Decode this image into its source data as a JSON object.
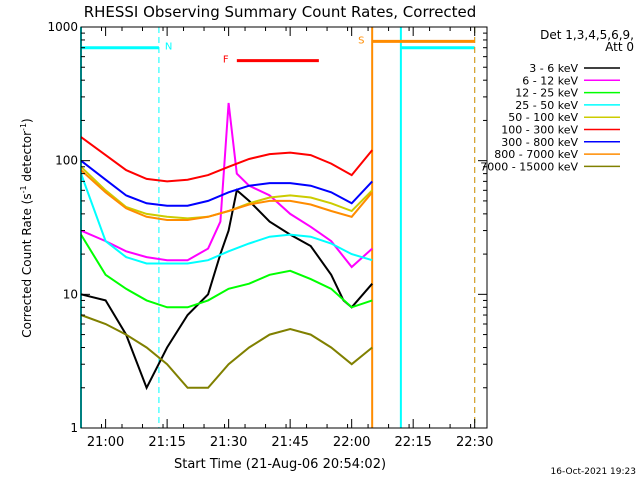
{
  "chart_data": {
    "type": "line",
    "title": "RHESSI Observing Summary Count Rates, Corrected",
    "xlabel": "Start Time (21-Aug-06 20:54:02)",
    "ylabel_main": "Corrected Count Rate (s",
    "ylabel_exp1": "-1",
    "ylabel_mid": " detector",
    "ylabel_exp2": "-1",
    "ylabel_end": ")",
    "yscale": "log",
    "xlim": [
      "20:54",
      "22:33"
    ],
    "ylim": [
      1,
      1000
    ],
    "x_ticks": [
      "21:00",
      "21:15",
      "21:30",
      "21:45",
      "22:00",
      "22:15",
      "22:30"
    ],
    "y_ticks": [
      "1",
      "10",
      "100",
      "1000"
    ],
    "timestamp": "16-Oct-2021 19:23",
    "legend": {
      "header1": "Det 1,3,4,5,6,9,",
      "header2": "Att 0",
      "position": "right"
    },
    "series": [
      {
        "name": "3 - 6 keV",
        "color": "#000000",
        "x": [
          "20:54",
          "21:00",
          "21:05",
          "21:10",
          "21:15",
          "21:20",
          "21:25",
          "21:28",
          "21:30",
          "21:32",
          "21:35",
          "21:40",
          "21:45",
          "21:50",
          "21:55",
          "21:58",
          "22:00",
          "22:05"
        ],
        "y": [
          10,
          9,
          5,
          2,
          4,
          7,
          10,
          20,
          30,
          60,
          50,
          35,
          28,
          23,
          14,
          9,
          8,
          12
        ]
      },
      {
        "name": "6 - 12 keV",
        "color": "#ff00ff",
        "x": [
          "20:54",
          "21:00",
          "21:05",
          "21:10",
          "21:15",
          "21:20",
          "21:25",
          "21:28",
          "21:30",
          "21:32",
          "21:35",
          "21:40",
          "21:45",
          "21:50",
          "21:55",
          "22:00",
          "22:05"
        ],
        "y": [
          30,
          25,
          21,
          19,
          18,
          18,
          22,
          35,
          270,
          80,
          65,
          55,
          40,
          32,
          25,
          16,
          22
        ]
      },
      {
        "name": "12 - 25 keV",
        "color": "#00ff00",
        "x": [
          "20:54",
          "21:00",
          "21:05",
          "21:10",
          "21:15",
          "21:20",
          "21:25",
          "21:30",
          "21:35",
          "21:40",
          "21:45",
          "21:50",
          "21:55",
          "22:00",
          "22:05"
        ],
        "y": [
          28,
          14,
          11,
          9,
          8,
          8,
          9,
          11,
          12,
          14,
          15,
          13,
          11,
          8,
          9
        ]
      },
      {
        "name": "25 - 50 keV",
        "color": "#00ffff",
        "x": [
          "20:54",
          "21:00",
          "21:05",
          "21:10",
          "21:15",
          "21:20",
          "21:25",
          "21:30",
          "21:35",
          "21:40",
          "21:45",
          "21:50",
          "21:55",
          "22:00",
          "22:05"
        ],
        "y": [
          80,
          25,
          19,
          17,
          17,
          17,
          18,
          21,
          24,
          27,
          28,
          27,
          24,
          20,
          18
        ]
      },
      {
        "name": "50 - 100 keV",
        "color": "#cccc00",
        "x": [
          "20:54",
          "21:00",
          "21:05",
          "21:10",
          "21:15",
          "21:20",
          "21:25",
          "21:30",
          "21:35",
          "21:40",
          "21:45",
          "21:50",
          "21:55",
          "22:00",
          "22:05"
        ],
        "y": [
          90,
          60,
          45,
          40,
          38,
          37,
          38,
          42,
          48,
          53,
          55,
          53,
          48,
          42,
          60
        ]
      },
      {
        "name": "100 - 300 keV",
        "color": "#ff0000",
        "x": [
          "20:54",
          "21:00",
          "21:05",
          "21:10",
          "21:15",
          "21:20",
          "21:25",
          "21:30",
          "21:35",
          "21:40",
          "21:45",
          "21:50",
          "21:55",
          "22:00",
          "22:05"
        ],
        "y": [
          150,
          110,
          85,
          73,
          70,
          72,
          78,
          90,
          103,
          112,
          115,
          110,
          95,
          78,
          120
        ]
      },
      {
        "name": "300 - 800 keV",
        "color": "#0000ff",
        "x": [
          "20:54",
          "21:00",
          "21:05",
          "21:10",
          "21:15",
          "21:20",
          "21:25",
          "21:30",
          "21:35",
          "21:40",
          "21:45",
          "21:50",
          "21:55",
          "22:00",
          "22:05"
        ],
        "y": [
          100,
          72,
          55,
          48,
          46,
          46,
          50,
          58,
          65,
          68,
          68,
          65,
          58,
          48,
          70
        ]
      },
      {
        "name": "800 - 7000 keV",
        "color": "#ff8c00",
        "x": [
          "20:54",
          "21:00",
          "21:05",
          "21:10",
          "21:15",
          "21:20",
          "21:25",
          "21:30",
          "21:35",
          "21:40",
          "21:45",
          "21:50",
          "21:55",
          "22:00",
          "22:05"
        ],
        "y": [
          85,
          58,
          44,
          38,
          36,
          36,
          38,
          42,
          47,
          50,
          50,
          47,
          42,
          38,
          58
        ]
      },
      {
        "name": "7000 - 15000 keV",
        "color": "#808000",
        "x": [
          "20:54",
          "21:00",
          "21:05",
          "21:10",
          "21:15",
          "21:20",
          "21:25",
          "21:30",
          "21:35",
          "21:40",
          "21:45",
          "21:50",
          "21:55",
          "22:00",
          "22:05"
        ],
        "y": [
          7,
          6,
          5,
          4,
          3,
          2,
          2,
          3,
          4,
          5,
          5.5,
          5,
          4,
          3,
          4
        ]
      }
    ],
    "markers": {
      "N": {
        "label": "N",
        "color": "#00ffff",
        "top_y": 700,
        "vlines": [
          "20:54",
          "21:13",
          "22:12",
          "22:30"
        ],
        "bars": [
          [
            "20:54",
            "21:13"
          ],
          [
            "22:12",
            "22:30"
          ]
        ]
      },
      "F": {
        "label": "F",
        "color": "#ff0000",
        "y": 560,
        "bar": [
          "21:32",
          "21:52"
        ]
      },
      "S": {
        "label": "S",
        "color": "#ff8c00",
        "y": 780,
        "vlines": [
          "22:05",
          "22:30"
        ],
        "bar": [
          "22:05",
          "22:30"
        ]
      }
    }
  }
}
